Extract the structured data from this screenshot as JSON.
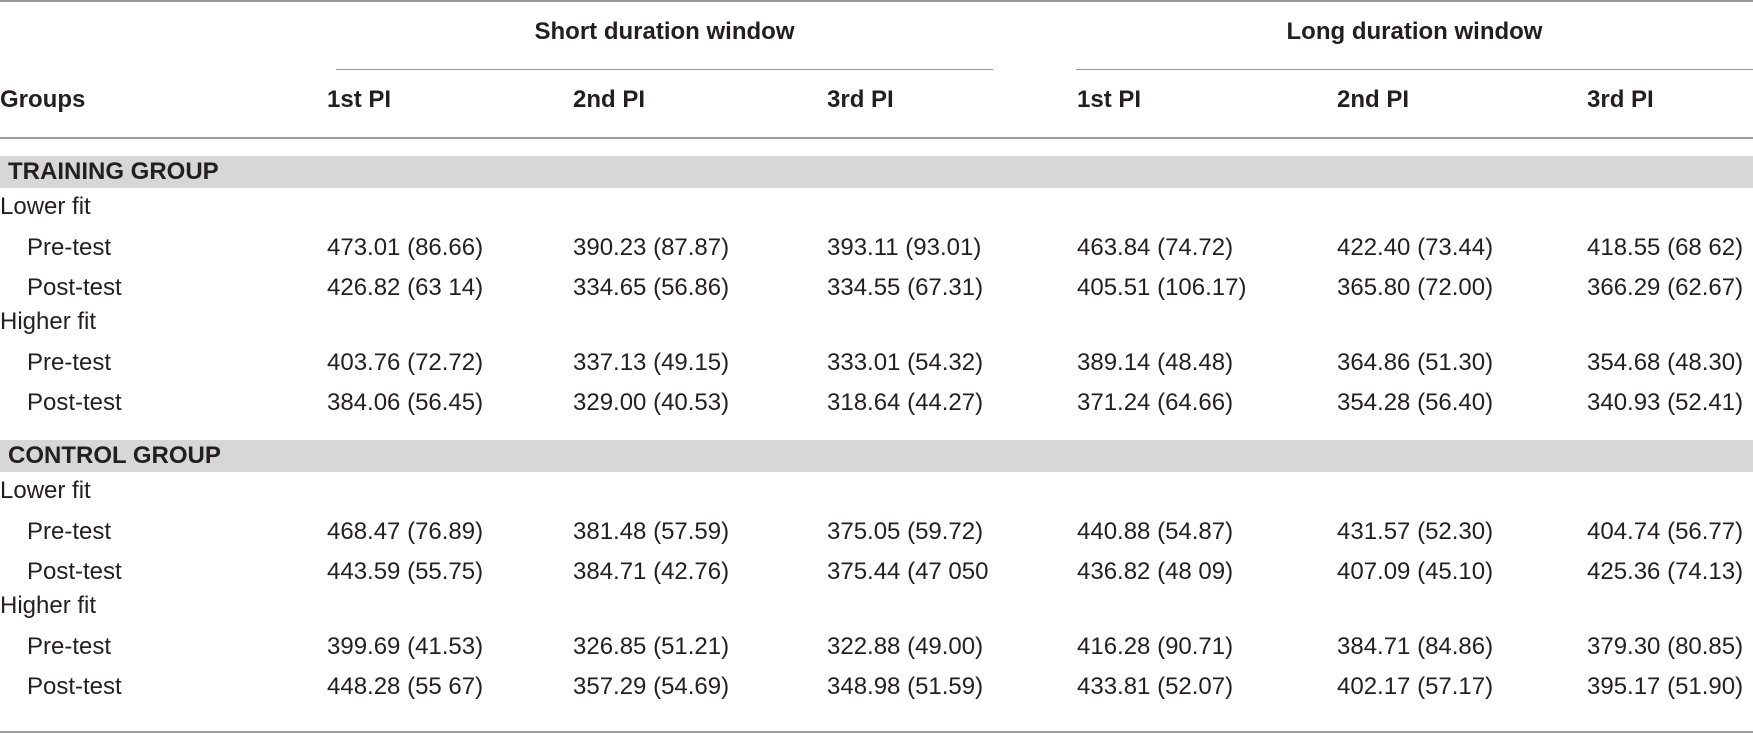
{
  "header": {
    "span_short": "Short duration window",
    "span_long": "Long duration window",
    "columns": [
      "Groups",
      "1st PI",
      "2nd PI",
      "3rd PI",
      "1st PI",
      "2nd PI",
      "3rd PI"
    ]
  },
  "sections": [
    {
      "title": "TRAINING GROUP",
      "groups": [
        {
          "label": "Lower fit",
          "rows": [
            {
              "label": "Pre-test",
              "values": [
                "473.01 (86.66)",
                "390.23 (87.87)",
                "393.11 (93.01)",
                "463.84 (74.72)",
                "422.40 (73.44)",
                "418.55 (68 62)"
              ]
            },
            {
              "label": "Post-test",
              "values": [
                "426.82 (63 14)",
                "334.65 (56.86)",
                "334.55 (67.31)",
                "405.51 (106.17)",
                "365.80 (72.00)",
                "366.29 (62.67)"
              ]
            }
          ]
        },
        {
          "label": "Higher fit",
          "rows": [
            {
              "label": "Pre-test",
              "values": [
                "403.76 (72.72)",
                "337.13 (49.15)",
                "333.01 (54.32)",
                "389.14 (48.48)",
                "364.86 (51.30)",
                "354.68 (48.30)"
              ]
            },
            {
              "label": "Post-test",
              "values": [
                "384.06 (56.45)",
                "329.00 (40.53)",
                "318.64 (44.27)",
                "371.24 (64.66)",
                "354.28 (56.40)",
                "340.93 (52.41)"
              ]
            }
          ]
        }
      ]
    },
    {
      "title": "CONTROL GROUP",
      "groups": [
        {
          "label": "Lower fit",
          "rows": [
            {
              "label": "Pre-test",
              "values": [
                "468.47 (76.89)",
                "381.48 (57.59)",
                "375.05 (59.72)",
                "440.88 (54.87)",
                "431.57 (52.30)",
                "404.74 (56.77)"
              ]
            },
            {
              "label": "Post-test",
              "values": [
                "443.59 (55.75)",
                "384.71 (42.76)",
                "375.44 (47 050",
                "436.82 (48 09)",
                "407.09 (45.10)",
                "425.36 (74.13)"
              ]
            }
          ]
        },
        {
          "label": "Higher fit",
          "rows": [
            {
              "label": "Pre-test",
              "values": [
                "399.69 (41.53)",
                "326.85 (51.21)",
                "322.88 (49.00)",
                "416.28 (90.71)",
                "384.71 (84.86)",
                "379.30 (80.85)"
              ]
            },
            {
              "label": "Post-test",
              "values": [
                "448.28 (55 67)",
                "357.29 (54.69)",
                "348.98 (51.59)",
                "433.81 (52.07)",
                "402.17 (57.17)",
                "395.17 (51.90)"
              ]
            }
          ]
        }
      ]
    }
  ]
}
